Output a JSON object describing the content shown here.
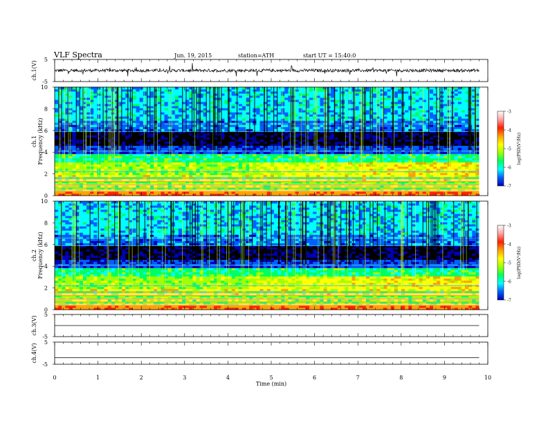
{
  "header": {
    "title": "VLF  Spectra",
    "date": "Jun. 19, 2015",
    "station": "station=ATH",
    "start": "start  UT  =   15:40:0"
  },
  "colors": {
    "colormap": [
      "#000000",
      "#0000b4",
      "#0060ff",
      "#00ffff",
      "#00ff60",
      "#a0ff00",
      "#ffff00",
      "#ffa000",
      "#ff2000",
      "#ffa0a0",
      "#ffffff"
    ],
    "trace": "#000000"
  },
  "chart_data": [
    {
      "type": "line",
      "panel": "ch1-waveform",
      "ylabel": "ch.1(V)",
      "ylim": [
        -5,
        5
      ],
      "yticks": [
        "5",
        "-5"
      ],
      "x": [
        0,
        1,
        2,
        3,
        4,
        5,
        6,
        7,
        8,
        9,
        9.8
      ],
      "series": [
        {
          "values": [
            0,
            0,
            0,
            0,
            0,
            0,
            0,
            0,
            0,
            0,
            0
          ]
        }
      ]
    },
    {
      "type": "heatmap",
      "panel": "ch1-spectrogram",
      "ylabel": "ch.1\nFrequency  (kHz)",
      "ylim": [
        0,
        10
      ],
      "yticks": [
        "0",
        "2",
        "4",
        "6",
        "8",
        "10"
      ],
      "xlim": [
        0,
        10
      ],
      "data_xmax": 9.8,
      "colorbar": {
        "label": "log(PSD(V²/Hz)",
        "range": [
          -7,
          -3
        ],
        "ticks": [
          "-3",
          "-4",
          "-5",
          "-6",
          "-7"
        ]
      }
    },
    {
      "type": "heatmap",
      "panel": "ch2-spectrogram",
      "ylabel": "ch.2\nFrequency  (kHz)",
      "ylim": [
        0,
        10
      ],
      "yticks": [
        "0",
        "2",
        "4",
        "6",
        "8",
        "10"
      ],
      "xlim": [
        0,
        10
      ],
      "data_xmax": 9.8,
      "colorbar": {
        "label": "log(PSD(V²/Hz)",
        "range": [
          -7,
          -3
        ],
        "ticks": [
          "-3",
          "-4",
          "-5",
          "-6",
          "-7"
        ]
      }
    },
    {
      "type": "line",
      "panel": "ch3-waveform",
      "ylabel": "ch.3(V)",
      "ylim": [
        -5,
        5
      ],
      "yticks": [
        "5",
        "-5"
      ],
      "x": [
        0,
        9.8
      ],
      "series": [
        {
          "values": [
            0,
            0
          ]
        }
      ]
    },
    {
      "type": "line",
      "panel": "ch4-waveform",
      "ylabel": "ch.4(V)",
      "ylim": [
        -5,
        5
      ],
      "yticks": [
        "5",
        "-5"
      ],
      "x": [
        0,
        9.8
      ],
      "series": [
        {
          "values": [
            -2,
            -2
          ]
        }
      ]
    }
  ],
  "xaxis": {
    "label": "Time  (min)",
    "range": [
      0,
      10
    ],
    "ticks": [
      "0",
      "1",
      "2",
      "3",
      "4",
      "5",
      "6",
      "7",
      "8",
      "9",
      "10"
    ]
  }
}
